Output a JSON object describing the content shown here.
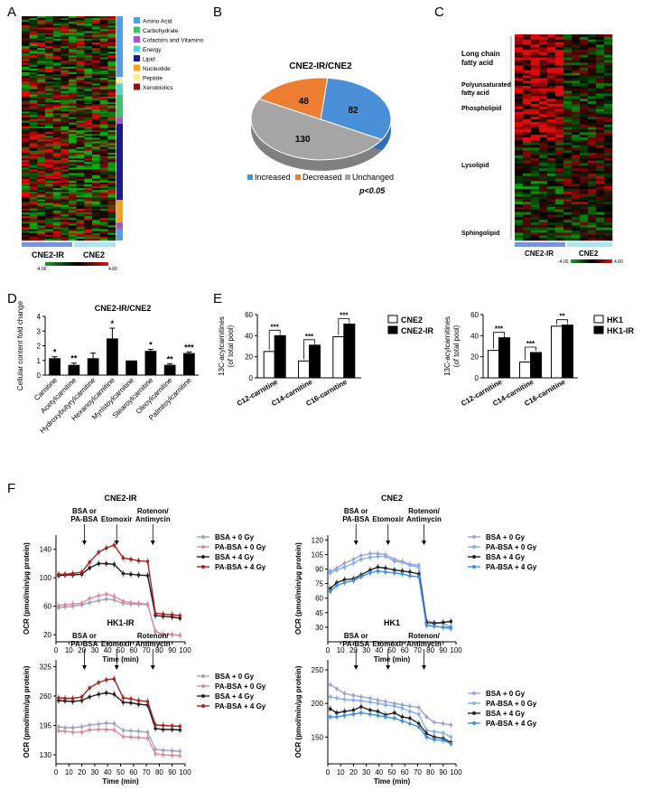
{
  "panels": {
    "A": "A",
    "B": "B",
    "C": "C",
    "D": "D",
    "E": "E",
    "F": "F"
  },
  "heatmapA": {
    "legend": [
      {
        "label": "Amino Acid",
        "color": "#4f9fe3"
      },
      {
        "label": "Carbohydrate",
        "color": "#3cc36a"
      },
      {
        "label": "Cofactors and Vitamins",
        "color": "#a455c7"
      },
      {
        "label": "Energy",
        "color": "#57d6cf"
      },
      {
        "label": "Lipid",
        "color": "#1a1a8c"
      },
      {
        "label": "Nucleotide",
        "color": "#f3a21f"
      },
      {
        "label": "Peptide",
        "color": "#f4ee9a"
      },
      {
        "label": "Xenobiotics",
        "color": "#8b1414"
      }
    ],
    "groups": [
      "CNE2-IR",
      "CNE2"
    ],
    "scale_min": "-4.00",
    "scale_max": "4.00"
  },
  "heatmapC": {
    "lipid_classes": [
      "Long chain fatty acid",
      "Polyunsaturated fatty acid",
      "Phospholipid",
      "Lysolipid",
      "Sphingolipid"
    ],
    "groups": [
      "CNE2-IR",
      "CNE2"
    ],
    "scale_min": "-4.00",
    "scale_max": "4.00"
  },
  "chart_data": [
    {
      "panel": "B",
      "type": "pie",
      "title": "CNE2-IR/CNE2",
      "slices": [
        {
          "label": "Increased",
          "value": 82,
          "color": "#4a90d9"
        },
        {
          "label": "Decreased",
          "value": 48,
          "color": "#ed7d31"
        },
        {
          "label": "Unchanged",
          "value": 130,
          "color": "#a5a5a5"
        }
      ],
      "note": "p<0.05"
    },
    {
      "panel": "D",
      "type": "bar",
      "title": "CNE2-IR/CNE2",
      "ylabel": "Cellular content fold change",
      "ylim": [
        0,
        4
      ],
      "yticks": [
        0,
        1,
        2,
        3,
        4
      ],
      "categories": [
        "Carnitine",
        "Acetylcarnitine",
        "Hydroxybutyrylcarnitine",
        "Hexanoylcarnitine",
        "Myristoylcarnitine",
        "Stearoylcarnitine",
        "Oleoylcarnitine",
        "Palmitoylcarnitine"
      ],
      "values": [
        1.15,
        0.7,
        1.15,
        2.5,
        1.0,
        1.65,
        0.7,
        1.5
      ],
      "errors": [
        0.1,
        0.12,
        0.35,
        0.7,
        0.0,
        0.1,
        0.08,
        0.08
      ],
      "sig": [
        "*",
        "**",
        "",
        "*",
        "",
        "*",
        "**",
        "***"
      ]
    },
    {
      "panel": "E1",
      "type": "bar",
      "ylabel": "(of total pool)",
      "ylabel_prefix": "13C-acylcarnitines",
      "ylim": [
        0,
        60
      ],
      "yticks": [
        0,
        20,
        40,
        60
      ],
      "categories": [
        "C12-carnitine",
        "C14-carnitine",
        "C16-carnitine"
      ],
      "series": [
        {
          "name": "CNE2",
          "values": [
            25,
            16,
            39
          ],
          "errors": [
            0.5,
            0.5,
            0.5
          ]
        },
        {
          "name": "CNE2-IR",
          "values": [
            40,
            31,
            51
          ],
          "errors": [
            1,
            1,
            1
          ]
        }
      ],
      "sig": [
        "***",
        "***",
        "***"
      ]
    },
    {
      "panel": "E2",
      "type": "bar",
      "ylabel": "(of total pool)",
      "ylabel_prefix": "13C-acylcarnitines",
      "ylim": [
        0,
        60
      ],
      "yticks": [
        0,
        20,
        40,
        60
      ],
      "categories": [
        "C12-carnitine",
        "C14-carnitine",
        "C16-carnitine"
      ],
      "series": [
        {
          "name": "HK1",
          "values": [
            26,
            15,
            49
          ],
          "errors": [
            0.5,
            0.5,
            0.5
          ]
        },
        {
          "name": "HK1-IR",
          "values": [
            38,
            24,
            50
          ],
          "errors": [
            1.5,
            0.5,
            1
          ]
        }
      ],
      "sig": [
        "***",
        "***",
        "**"
      ]
    },
    {
      "panel": "F1",
      "type": "line",
      "title": "CNE2-IR",
      "xlabel": "Time (min)",
      "ylabel": "OCR (pmol/min/µg protein)",
      "xlim": [
        0,
        100
      ],
      "ylim": [
        10,
        160
      ],
      "xticks": [
        0,
        10,
        20,
        30,
        40,
        50,
        60,
        70,
        80,
        90,
        100
      ],
      "yticks": [
        20,
        60,
        100,
        140
      ],
      "x": [
        2,
        7,
        13,
        20,
        26,
        33,
        39,
        45,
        52,
        58,
        64,
        71,
        77,
        83,
        90,
        96
      ],
      "annotations": [
        {
          "text": "BSA or",
          "text2": "PA-BSA",
          "x": 22
        },
        {
          "text": "Etomoxir",
          "x": 47
        },
        {
          "text": "Rotenon/",
          "text2": "Antimycin",
          "x": 75
        }
      ],
      "series": [
        {
          "name": "BSA + 0 Gy",
          "color": "#a0a4ba",
          "y": [
            58,
            59,
            60,
            62,
            65,
            68,
            70,
            69,
            64,
            63,
            63,
            62,
            25,
            20,
            20,
            19
          ]
        },
        {
          "name": "PA-BSA + 0 Gy",
          "color": "#d88aa2",
          "y": [
            61,
            62,
            63,
            64,
            71,
            75,
            77,
            74,
            67,
            65,
            64,
            63,
            24,
            21,
            20,
            19
          ]
        },
        {
          "name": "BSA + 4 Gy",
          "color": "#222222",
          "y": [
            103,
            104,
            104,
            105,
            114,
            120,
            120,
            119,
            106,
            105,
            104,
            103,
            47,
            46,
            45,
            43
          ]
        },
        {
          "name": "PA-BSA + 4 Gy",
          "color": "#a52323",
          "y": [
            105,
            105,
            106,
            108,
            122,
            136,
            142,
            146,
            128,
            126,
            124,
            123,
            50,
            49,
            48,
            47
          ]
        }
      ]
    },
    {
      "panel": "F2",
      "type": "line",
      "title": "CNE2",
      "xlabel": "Time (min)",
      "ylabel": "OCR (pmol/min/µg protein)",
      "xlim": [
        0,
        100
      ],
      "ylim": [
        15,
        125
      ],
      "xticks": [
        0,
        10,
        20,
        30,
        40,
        50,
        60,
        70,
        80,
        90,
        100
      ],
      "yticks": [
        30,
        45,
        60,
        75,
        90,
        105,
        120
      ],
      "x": [
        2,
        7,
        13,
        20,
        26,
        33,
        39,
        45,
        52,
        58,
        64,
        71,
        77,
        83,
        90,
        96
      ],
      "annotations": [
        {
          "text": "BSA or",
          "text2": "PA-BSA",
          "x": 22
        },
        {
          "text": "Etomoxir",
          "x": 47
        },
        {
          "text": "Rotenon/",
          "text2": "Antimycin",
          "x": 75
        }
      ],
      "series": [
        {
          "name": "BSA + 0 Gy",
          "color": "#9fa3cf",
          "y": [
            88,
            91,
            96,
            100,
            104,
            106,
            106,
            105,
            100,
            98,
            95,
            94,
            37,
            35,
            34,
            30
          ]
        },
        {
          "name": "PA-BSA + 0 Gy",
          "color": "#86aee8",
          "y": [
            86,
            89,
            92,
            96,
            100,
            102,
            103,
            103,
            98,
            97,
            94,
            92,
            33,
            31,
            30,
            28
          ]
        },
        {
          "name": "BSA + 4 Gy",
          "color": "#222222",
          "y": [
            70,
            76,
            79,
            80,
            84,
            89,
            92,
            91,
            89,
            88,
            87,
            85,
            35,
            34,
            35,
            36
          ]
        },
        {
          "name": "PA-BSA + 4 Gy",
          "color": "#3f8fe0",
          "y": [
            67,
            73,
            76,
            78,
            82,
            86,
            88,
            87,
            86,
            85,
            83,
            82,
            32,
            31,
            30,
            30
          ]
        }
      ]
    },
    {
      "panel": "F3",
      "type": "line",
      "title": "HK1-IR",
      "xlabel": "Time (min)",
      "ylabel": "OCR (pmol/min/µg protein)",
      "xlim": [
        0,
        100
      ],
      "ylim": [
        110,
        340
      ],
      "xticks": [
        0,
        10,
        20,
        30,
        40,
        50,
        60,
        70,
        80,
        90,
        100
      ],
      "yticks": [
        130,
        195,
        260,
        325
      ],
      "x": [
        2,
        7,
        13,
        20,
        26,
        33,
        39,
        45,
        52,
        58,
        64,
        71,
        77,
        83,
        90,
        96
      ],
      "annotations": [
        {
          "text": "BSA or",
          "text2": "PA-BSA",
          "x": 22
        },
        {
          "text": "Etomoxir",
          "x": 47
        },
        {
          "text": "Rotenon/",
          "text2": "Antimycin",
          "x": 75
        }
      ],
      "series": [
        {
          "name": "BSA + 0 Gy",
          "color": "#a0a4ba",
          "y": [
            192,
            190,
            190,
            192,
            196,
            198,
            200,
            199,
            184,
            183,
            182,
            180,
            142,
            140,
            139,
            138
          ]
        },
        {
          "name": "PA-BSA + 0 Gy",
          "color": "#d88aa2",
          "y": [
            183,
            182,
            180,
            180,
            185,
            186,
            186,
            185,
            170,
            169,
            168,
            167,
            132,
            130,
            129,
            128
          ]
        },
        {
          "name": "BSA + 4 Gy",
          "color": "#222222",
          "y": [
            250,
            249,
            248,
            250,
            258,
            264,
            267,
            264,
            246,
            245,
            242,
            240,
            188,
            186,
            186,
            185
          ]
        },
        {
          "name": "PA-BSA + 4 Gy",
          "color": "#a52323",
          "y": [
            256,
            255,
            255,
            258,
            278,
            290,
            296,
            298,
            256,
            254,
            250,
            248,
            196,
            195,
            194,
            193
          ]
        }
      ]
    },
    {
      "panel": "F4",
      "type": "line",
      "title": "HK1",
      "xlabel": "Time (min)",
      "ylabel": "OCR (pmol/min/µg protein)",
      "xlim": [
        0,
        100
      ],
      "ylim": [
        110,
        265
      ],
      "xticks": [
        0,
        10,
        20,
        30,
        40,
        50,
        60,
        70,
        80,
        90,
        100
      ],
      "yticks": [
        150,
        200,
        250
      ],
      "x": [
        2,
        7,
        13,
        20,
        26,
        33,
        39,
        45,
        52,
        58,
        64,
        71,
        77,
        83,
        90,
        96
      ],
      "annotations": [
        {
          "text": "BSA or",
          "text2": "PA-BSA",
          "x": 22
        },
        {
          "text": "Etomoxir",
          "x": 47
        },
        {
          "text": "Rotenon/",
          "text2": "Antimycin",
          "x": 75
        }
      ],
      "series": [
        {
          "name": "BSA + 0 Gy",
          "color": "#9fa3cf",
          "y": [
            228,
            222,
            215,
            212,
            210,
            208,
            205,
            203,
            200,
            198,
            196,
            194,
            180,
            172,
            170,
            168
          ]
        },
        {
          "name": "PA-BSA + 0 Gy",
          "color": "#86aee8",
          "y": [
            210,
            208,
            206,
            205,
            204,
            202,
            200,
            198,
            196,
            193,
            188,
            184,
            160,
            158,
            156,
            150
          ]
        },
        {
          "name": "BSA + 4 Gy",
          "color": "#222222",
          "y": [
            192,
            186,
            188,
            190,
            195,
            190,
            188,
            183,
            186,
            180,
            178,
            170,
            155,
            150,
            148,
            142
          ]
        },
        {
          "name": "PA-BSA + 4 Gy",
          "color": "#3f8fe0",
          "y": [
            180,
            180,
            182,
            184,
            186,
            184,
            182,
            180,
            178,
            174,
            170,
            165,
            150,
            146,
            145,
            140
          ]
        }
      ]
    }
  ]
}
